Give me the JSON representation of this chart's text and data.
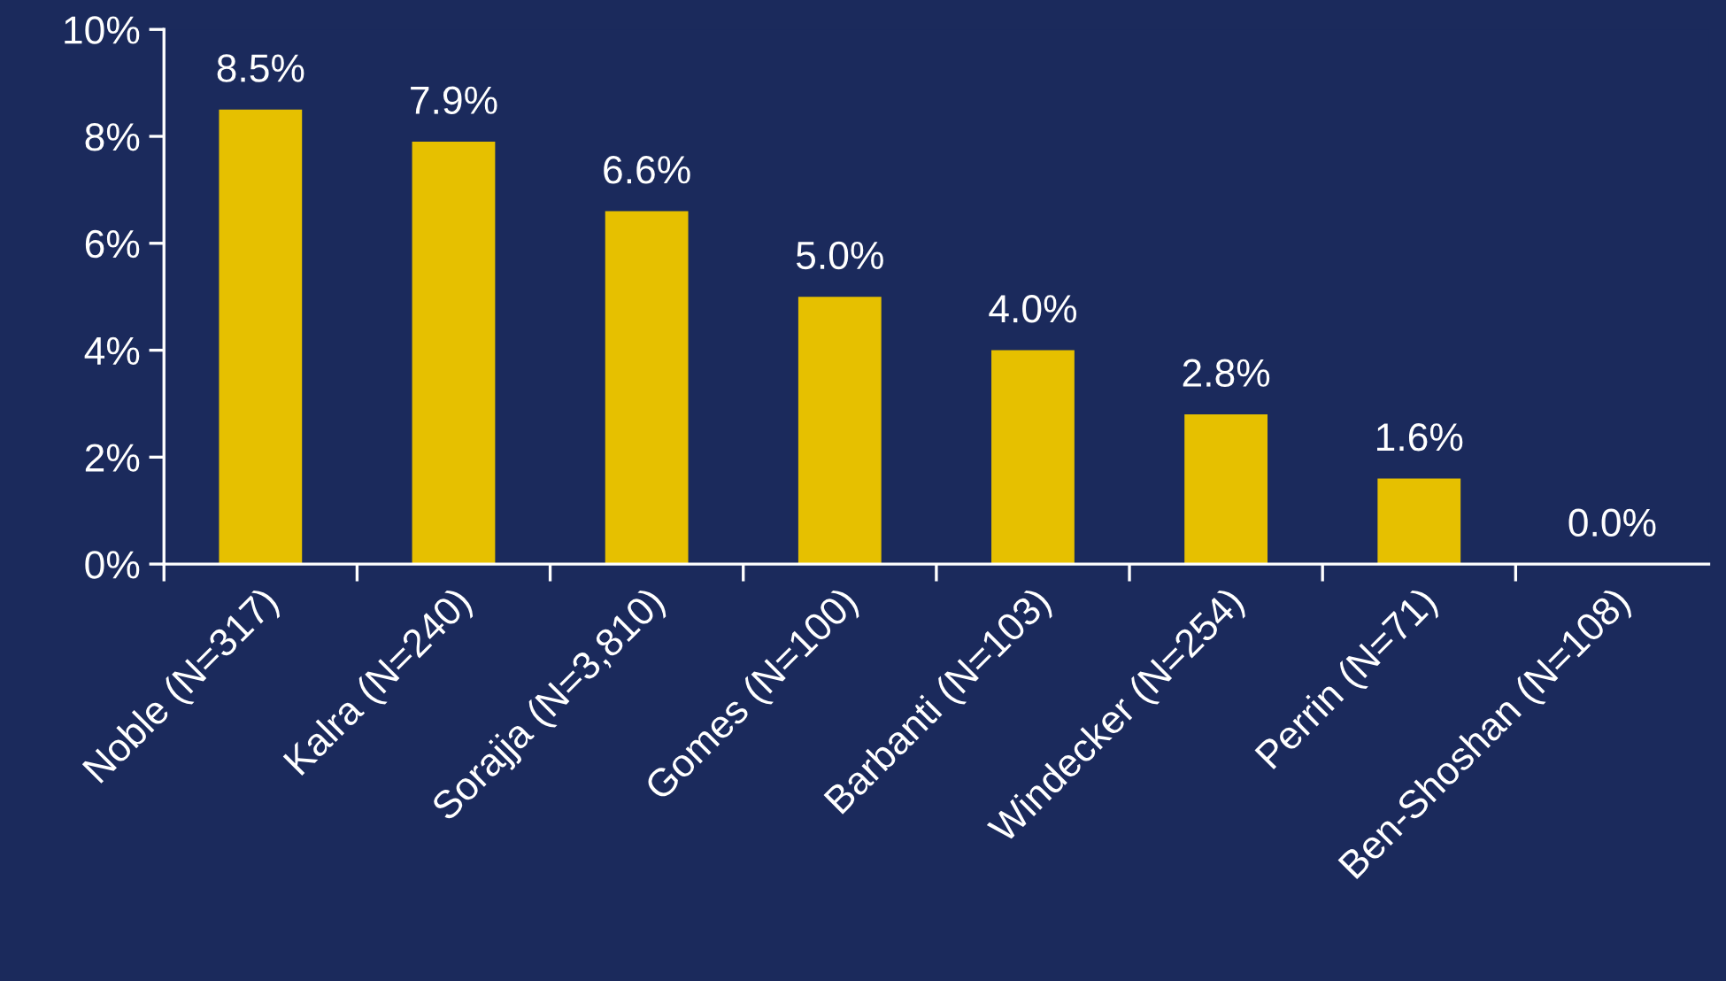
{
  "chart_data": {
    "type": "bar",
    "categories": [
      "Noble (N=317)",
      "Kalra (N=240)",
      "Sorajja (N=3,810)",
      "Gomes (N=100)",
      "Barbanti (N=103)",
      "Windecker (N=254)",
      "Perrin (N=71)",
      "Ben-Shoshan (N=108)"
    ],
    "values": [
      8.5,
      7.9,
      6.6,
      5.0,
      4.0,
      2.8,
      1.6,
      0.0
    ],
    "value_labels": [
      "8.5%",
      "7.9%",
      "6.6%",
      "5.0%",
      "4.0%",
      "2.8%",
      "1.6%",
      "0.0%"
    ],
    "color": "#e6c000",
    "ylim": [
      0,
      10
    ],
    "yticks": [
      {
        "value": 0,
        "label": "0%"
      },
      {
        "value": 2,
        "label": "2%"
      },
      {
        "value": 4,
        "label": "4%"
      },
      {
        "value": 6,
        "label": "6%"
      },
      {
        "value": 8,
        "label": "8%"
      },
      {
        "value": 10,
        "label": "10%"
      }
    ],
    "grid": false
  }
}
